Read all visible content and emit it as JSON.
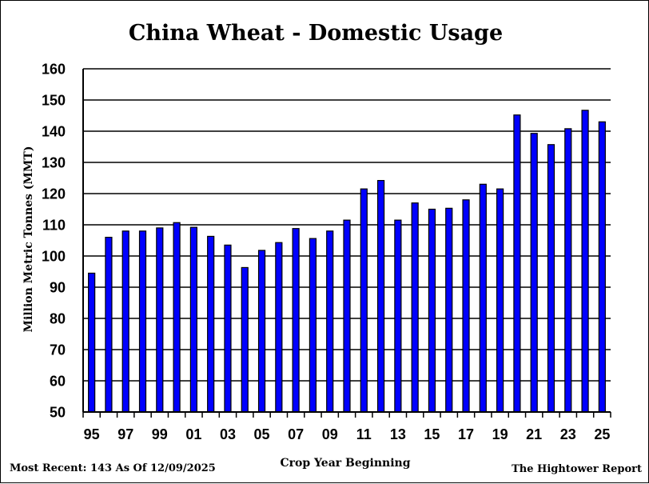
{
  "chart_data": {
    "type": "bar",
    "title": "China Wheat - Domestic Usage",
    "xlabel": "Crop Year Beginning",
    "ylabel": "Million Metric Tonnes (MMT)",
    "ylim": [
      50,
      160
    ],
    "yticks": [
      50,
      60,
      70,
      80,
      90,
      100,
      110,
      120,
      130,
      140,
      150,
      160
    ],
    "grid": true,
    "bar_color": "#0000ff",
    "categories": [
      "95",
      "96",
      "97",
      "98",
      "99",
      "00",
      "01",
      "02",
      "03",
      "04",
      "05",
      "06",
      "07",
      "08",
      "09",
      "10",
      "11",
      "12",
      "13",
      "14",
      "15",
      "16",
      "17",
      "18",
      "19",
      "20",
      "21",
      "22",
      "23",
      "24",
      "25"
    ],
    "xtick_labels": [
      "95",
      "97",
      "99",
      "01",
      "03",
      "05",
      "07",
      "09",
      "11",
      "13",
      "15",
      "17",
      "19",
      "21",
      "23",
      "25"
    ],
    "values": [
      94.5,
      106,
      108,
      108,
      109,
      110.7,
      109.2,
      106.3,
      103.5,
      96.3,
      101.8,
      104.3,
      108.8,
      105.6,
      108,
      111.5,
      121.5,
      124.2,
      111.5,
      117,
      115,
      115.3,
      118,
      123,
      121.5,
      145.2,
      139.3,
      135.7,
      140.8,
      146.7,
      143
    ]
  },
  "footer": {
    "most_recent": "Most Recent: 143 As Of 12/09/2025",
    "source": "The Hightower Report"
  }
}
